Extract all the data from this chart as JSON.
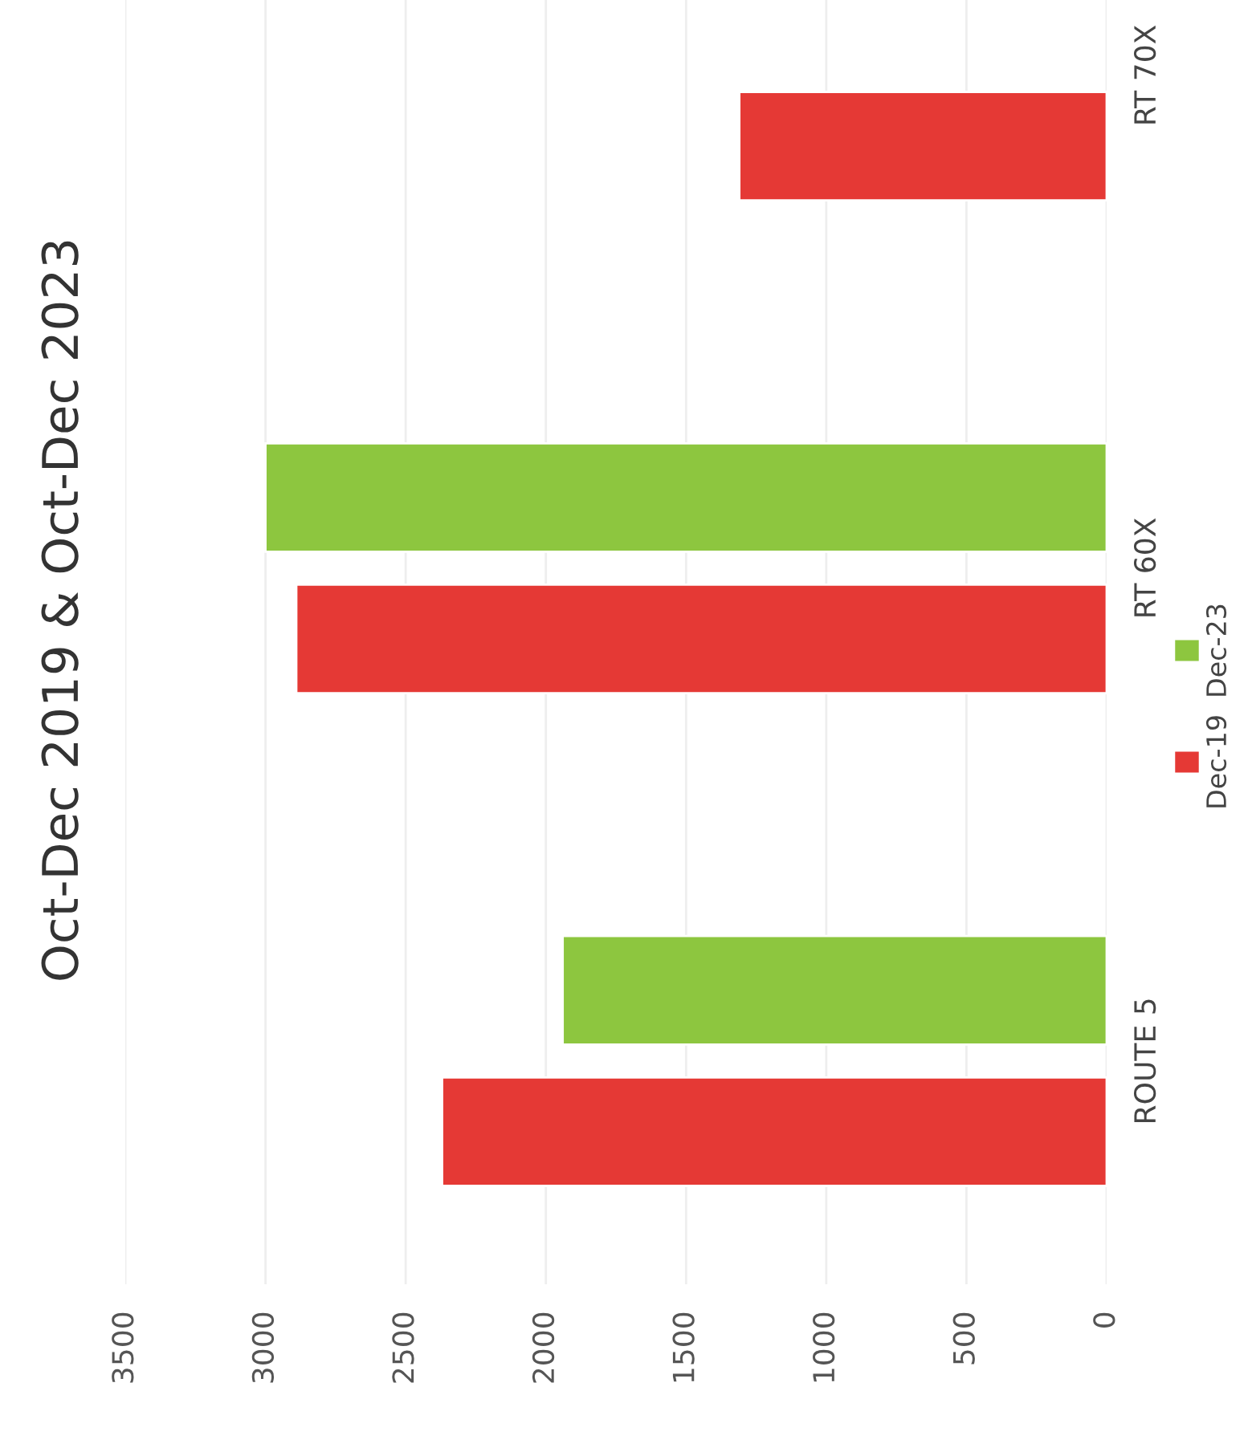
{
  "chart_data": {
    "type": "bar",
    "orientation": "horizontal",
    "title": "Oct-Dec 2019 & Oct-Dec 2023",
    "categories": [
      "RT 70X",
      "RT 60X",
      "ROUTE 5"
    ],
    "series": [
      {
        "name": "Dec-19",
        "color": "#e53935",
        "values": [
          1310,
          2890,
          2370
        ]
      },
      {
        "name": "Dec-23",
        "color": "#8dc63f",
        "values": [
          null,
          3000,
          1940
        ]
      }
    ],
    "xlim": [
      3500,
      0
    ],
    "xticks": [
      0,
      500,
      1000,
      1500,
      2000,
      2500,
      3000,
      3500
    ],
    "grid": "x",
    "legend": "right"
  }
}
